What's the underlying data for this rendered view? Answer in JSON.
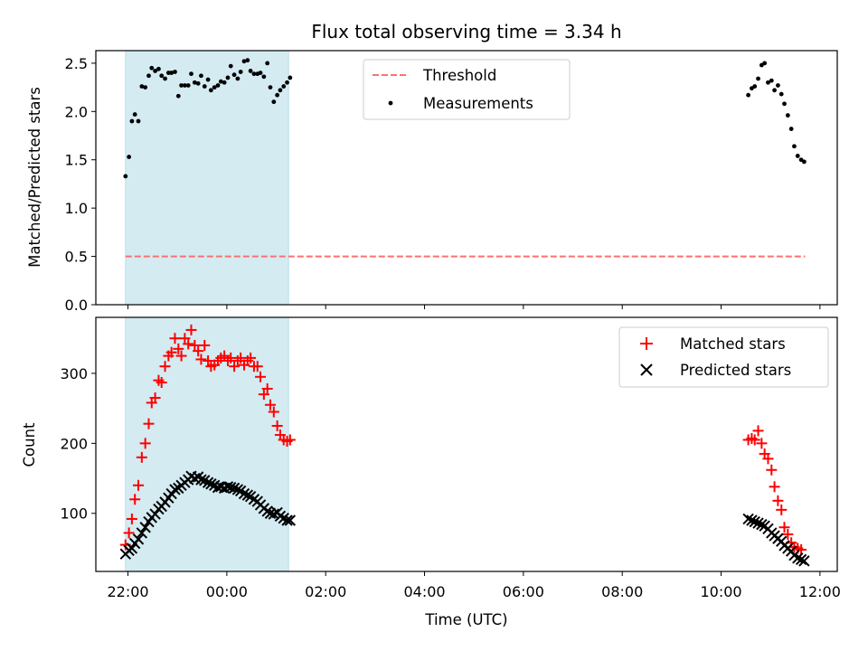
{
  "chart_data": [
    {
      "type": "scatter",
      "title": "Flux total observing time = 3.34 h",
      "xlabel": "",
      "ylabel": "Matched/Predicted stars",
      "xlim": [
        -2.65,
        12.35
      ],
      "ylim": [
        0,
        2.63
      ],
      "x_ticks": [
        "",
        "",
        "",
        "",
        "",
        "",
        ""
      ],
      "x_tick_values": [
        -2,
        0,
        2,
        4,
        6,
        8,
        10,
        12
      ],
      "y_ticks": [
        "0.0",
        "0.5",
        "1.0",
        "1.5",
        "2.0",
        "2.5"
      ],
      "y_tick_values": [
        0,
        0.5,
        1.0,
        1.5,
        2.0,
        2.5
      ],
      "shaded_span": {
        "x": [
          -2.05,
          1.25
        ],
        "color": "#add8e6"
      },
      "legend_position": "upper-center",
      "series": [
        {
          "name": "Threshold",
          "style": "dashed-line",
          "color": "#ff7070",
          "x": [
            -2.05,
            11.7
          ],
          "y": [
            0.5,
            0.5
          ]
        },
        {
          "name": "Measurements",
          "style": "dot",
          "color": "#000000",
          "x": [
            -2.05,
            -1.98,
            -1.92,
            -1.86,
            -1.79,
            -1.72,
            -1.65,
            -1.58,
            -1.52,
            -1.45,
            -1.38,
            -1.32,
            -1.25,
            -1.18,
            -1.12,
            -1.05,
            -0.98,
            -0.92,
            -0.85,
            -0.78,
            -0.72,
            -0.65,
            -0.58,
            -0.52,
            -0.45,
            -0.38,
            -0.32,
            -0.25,
            -0.18,
            -0.12,
            -0.05,
            0.02,
            0.08,
            0.15,
            0.22,
            0.28,
            0.35,
            0.42,
            0.48,
            0.55,
            0.62,
            0.68,
            0.75,
            0.82,
            0.88,
            0.95,
            1.02,
            1.08,
            1.15,
            1.22,
            1.28,
            10.55,
            10.62,
            10.68,
            10.75,
            10.82,
            10.88,
            10.95,
            11.02,
            11.08,
            11.15,
            11.22,
            11.28,
            11.35,
            11.42,
            11.48,
            11.55,
            11.62,
            11.68
          ],
          "y": [
            1.33,
            1.53,
            1.9,
            1.97,
            1.9,
            2.26,
            2.25,
            2.37,
            2.45,
            2.42,
            2.44,
            2.37,
            2.34,
            2.4,
            2.4,
            2.41,
            2.16,
            2.27,
            2.27,
            2.27,
            2.39,
            2.3,
            2.29,
            2.37,
            2.26,
            2.33,
            2.22,
            2.25,
            2.27,
            2.31,
            2.3,
            2.35,
            2.47,
            2.38,
            2.34,
            2.41,
            2.52,
            2.53,
            2.42,
            2.39,
            2.39,
            2.4,
            2.36,
            2.5,
            2.25,
            2.1,
            2.17,
            2.22,
            2.26,
            2.3,
            2.35,
            2.17,
            2.24,
            2.26,
            2.34,
            2.48,
            2.5,
            2.3,
            2.32,
            2.22,
            2.27,
            2.18,
            2.08,
            1.96,
            1.82,
            1.64,
            1.54,
            1.5,
            1.48
          ]
        }
      ]
    },
    {
      "type": "scatter",
      "title": "",
      "xlabel": "Time (UTC)",
      "ylabel": "Count",
      "xlim": [
        -2.65,
        12.35
      ],
      "ylim": [
        17,
        380
      ],
      "x_ticks": [
        "22:00",
        "00:00",
        "02:00",
        "04:00",
        "06:00",
        "08:00",
        "10:00",
        "12:00"
      ],
      "x_tick_values": [
        -2,
        0,
        2,
        4,
        6,
        8,
        10,
        12
      ],
      "y_ticks": [
        "100",
        "200",
        "300"
      ],
      "y_tick_values": [
        100,
        200,
        300
      ],
      "shaded_span": {
        "x": [
          -2.05,
          1.25
        ],
        "color": "#add8e6"
      },
      "legend_position": "upper-right",
      "series": [
        {
          "name": "Matched stars",
          "style": "plus",
          "color": "#ff0000",
          "x": [
            -2.05,
            -1.98,
            -1.92,
            -1.86,
            -1.79,
            -1.72,
            -1.65,
            -1.58,
            -1.52,
            -1.45,
            -1.38,
            -1.32,
            -1.25,
            -1.18,
            -1.12,
            -1.05,
            -0.98,
            -0.92,
            -0.85,
            -0.78,
            -0.72,
            -0.65,
            -0.58,
            -0.52,
            -0.45,
            -0.38,
            -0.32,
            -0.25,
            -0.18,
            -0.12,
            -0.05,
            0.02,
            0.08,
            0.15,
            0.22,
            0.28,
            0.35,
            0.42,
            0.48,
            0.55,
            0.62,
            0.68,
            0.75,
            0.82,
            0.88,
            0.95,
            1.02,
            1.08,
            1.15,
            1.22,
            1.28,
            10.55,
            10.62,
            10.68,
            10.75,
            10.82,
            10.88,
            10.95,
            11.02,
            11.08,
            11.15,
            11.22,
            11.28,
            11.35,
            11.42,
            11.48,
            11.55,
            11.62
          ],
          "y": [
            55,
            72,
            92,
            120,
            140,
            180,
            200,
            228,
            258,
            265,
            290,
            287,
            310,
            325,
            330,
            350,
            335,
            325,
            350,
            342,
            362,
            340,
            332,
            320,
            340,
            318,
            310,
            312,
            318,
            322,
            325,
            318,
            322,
            310,
            318,
            322,
            312,
            318,
            322,
            310,
            310,
            295,
            270,
            278,
            255,
            245,
            225,
            212,
            205,
            203,
            205,
            205,
            207,
            205,
            218,
            200,
            185,
            178,
            162,
            138,
            118,
            105,
            80,
            70,
            58,
            52,
            50,
            48
          ],
          "clip_after_index": 50
        },
        {
          "name": "Predicted stars",
          "style": "x",
          "color": "#000000",
          "x": [
            -2.05,
            -1.98,
            -1.92,
            -1.86,
            -1.79,
            -1.72,
            -1.65,
            -1.58,
            -1.52,
            -1.45,
            -1.38,
            -1.32,
            -1.25,
            -1.18,
            -1.12,
            -1.05,
            -0.98,
            -0.92,
            -0.85,
            -0.78,
            -0.72,
            -0.65,
            -0.58,
            -0.52,
            -0.45,
            -0.38,
            -0.32,
            -0.25,
            -0.18,
            -0.12,
            -0.05,
            0.02,
            0.08,
            0.15,
            0.22,
            0.28,
            0.35,
            0.42,
            0.48,
            0.55,
            0.62,
            0.68,
            0.75,
            0.82,
            0.88,
            0.95,
            1.02,
            1.08,
            1.15,
            1.22,
            1.28,
            10.55,
            10.62,
            10.68,
            10.75,
            10.82,
            10.88,
            10.95,
            11.02,
            11.08,
            11.15,
            11.22,
            11.28,
            11.35,
            11.42,
            11.48,
            11.55,
            11.62,
            11.68
          ],
          "y": [
            42,
            47,
            50,
            57,
            63,
            72,
            80,
            88,
            94,
            99,
            106,
            110,
            116,
            122,
            128,
            134,
            136,
            140,
            144,
            148,
            153,
            150,
            152,
            148,
            147,
            144,
            142,
            140,
            137,
            138,
            136,
            138,
            137,
            136,
            134,
            132,
            128,
            126,
            124,
            120,
            117,
            112,
            107,
            103,
            100,
            99,
            101,
            96,
            93,
            90,
            90,
            92,
            90,
            88,
            86,
            84,
            82,
            78,
            72,
            68,
            64,
            60,
            54,
            50,
            46,
            40,
            36,
            34,
            32
          ]
        }
      ]
    }
  ]
}
